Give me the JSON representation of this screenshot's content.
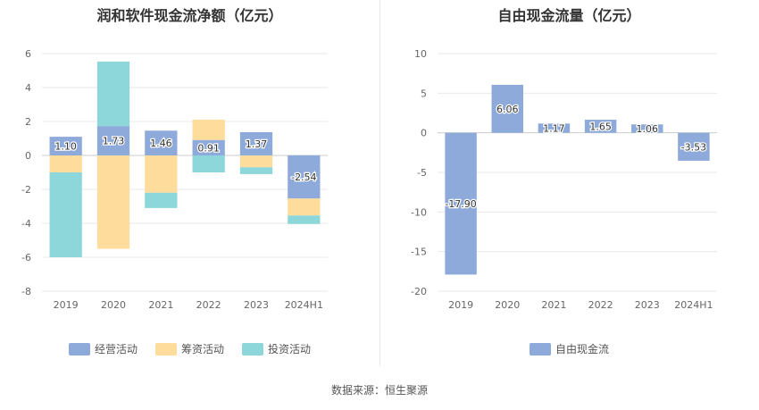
{
  "source": "数据来源：恒生聚源",
  "chart_data": [
    {
      "type": "bar",
      "stacked": true,
      "title": "润和软件现金流净额（亿元）",
      "categories": [
        "2019",
        "2020",
        "2021",
        "2022",
        "2023",
        "2024H1"
      ],
      "series": [
        {
          "name": "经营活动",
          "color": "#8eaadb",
          "values": [
            1.1,
            1.73,
            1.46,
            0.91,
            1.37,
            -2.54
          ],
          "labels": [
            "1.10",
            "1.73",
            "1.46",
            "0.91",
            "1.37",
            "-2.54"
          ]
        },
        {
          "name": "筹资活动",
          "color": "#fedc9b",
          "values": [
            -1.0,
            -5.5,
            -2.2,
            1.2,
            -0.7,
            -1.0
          ]
        },
        {
          "name": "投资活动",
          "color": "#8dd6d9",
          "values": [
            -5.0,
            3.8,
            -0.9,
            -1.0,
            -0.4,
            -0.5
          ]
        }
      ],
      "ylim": [
        -8,
        6
      ],
      "yticks": [
        "-8",
        "-6",
        "-4",
        "-2",
        "0",
        "2",
        "4",
        "6"
      ],
      "grid": true,
      "legend": "bottom"
    },
    {
      "type": "bar",
      "title": "自由现金流量（亿元）",
      "categories": [
        "2019",
        "2020",
        "2021",
        "2022",
        "2023",
        "2024H1"
      ],
      "series": [
        {
          "name": "自由现金流",
          "color": "#8eaadb",
          "values": [
            -17.9,
            6.06,
            1.17,
            1.65,
            1.06,
            -3.53
          ],
          "labels": [
            "-17.90",
            "6.06",
            "1.17",
            "1.65",
            "1.06",
            "-3.53"
          ]
        }
      ],
      "ylim": [
        -20,
        10
      ],
      "yticks": [
        "-20",
        "-15",
        "-10",
        "-5",
        "0",
        "5",
        "10"
      ],
      "grid": true,
      "legend": "bottom"
    }
  ]
}
